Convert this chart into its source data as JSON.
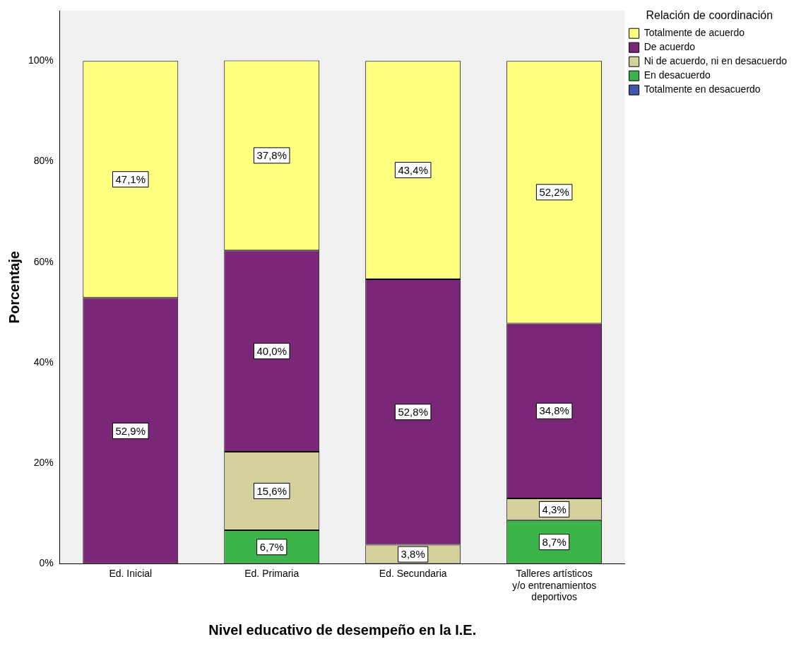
{
  "chart_data": {
    "type": "bar",
    "stacked": true,
    "xlabel": "Nivel educativo de desempeño en la I.E.",
    "ylabel": "Porcentaje",
    "legend_title": "Relación de coordinación",
    "legend": "top right",
    "categories": [
      "Ed. Inicial",
      "Ed. Primaria",
      "Ed. Secundaria",
      "Talleres artísticos y/o entrenamientos deportivos"
    ],
    "ylim": [
      0,
      110
    ],
    "yticks": [
      {
        "value": 0,
        "label": "0%"
      },
      {
        "value": 20,
        "label": "20%"
      },
      {
        "value": 40,
        "label": "40%"
      },
      {
        "value": 60,
        "label": "60%"
      },
      {
        "value": 80,
        "label": "80%"
      },
      {
        "value": 100,
        "label": "100%"
      }
    ],
    "grid": false,
    "series": [
      {
        "name": "Totalmente en desacuerdo",
        "color": "#3e58ac",
        "values": [
          null,
          null,
          null,
          null
        ]
      },
      {
        "name": "En desacuerdo",
        "color": "#3cb44a",
        "values": [
          null,
          6.7,
          null,
          8.7
        ],
        "value_labels": [
          null,
          "6,7%",
          null,
          "8,7%"
        ]
      },
      {
        "name": "Ni de acuerdo, ni en desacuerdo",
        "color": "#d6d09c",
        "values": [
          null,
          15.6,
          3.8,
          4.3
        ],
        "value_labels": [
          null,
          "15,6%",
          "3,8%",
          "4,3%"
        ]
      },
      {
        "name": "De acuerdo",
        "color": "#7b2777",
        "values": [
          52.9,
          40.0,
          52.8,
          34.8
        ],
        "value_labels": [
          "52,9%",
          "40,0%",
          "52,8%",
          "34,8%"
        ]
      },
      {
        "name": "Totalmente de acuerdo",
        "color": "#ffff80",
        "values": [
          47.1,
          37.8,
          43.4,
          52.2
        ],
        "value_labels": [
          "47,1%",
          "37,8%",
          "43,4%",
          "52,2%"
        ]
      }
    ]
  }
}
